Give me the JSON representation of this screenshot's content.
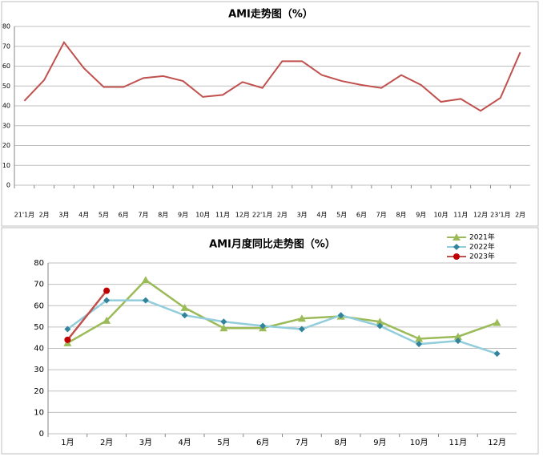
{
  "chart_data": [
    {
      "type": "line",
      "title": "AMI走势图（%）",
      "categories": [
        "21'1月",
        "2月",
        "3月",
        "4月",
        "5月",
        "6月",
        "7月",
        "8月",
        "9月",
        "10月",
        "11月",
        "12月",
        "22'1月",
        "2月",
        "3月",
        "4月",
        "5月",
        "6月",
        "7月",
        "8月",
        "9月",
        "10月",
        "11月",
        "12月",
        "23'1月",
        "2月"
      ],
      "values": [
        42.5,
        53,
        72,
        59,
        49.5,
        49.5,
        54,
        55,
        52.5,
        44.5,
        45.5,
        52,
        49,
        62.5,
        62.5,
        55.5,
        52.5,
        50.5,
        49,
        55.5,
        50.5,
        42,
        43.5,
        37.5,
        44,
        67
      ],
      "color": "#c0504d",
      "ylim": [
        0,
        80
      ],
      "yticks": [
        0,
        10,
        20,
        30,
        40,
        50,
        60,
        70,
        80
      ],
      "grid": true
    },
    {
      "type": "line",
      "title": "AMI月度同比走势图（%）",
      "categories": [
        "1月",
        "2月",
        "3月",
        "4月",
        "5月",
        "6月",
        "7月",
        "8月",
        "9月",
        "10月",
        "11月",
        "12月"
      ],
      "series": [
        {
          "name": "2021年",
          "color": "#9bbb59",
          "marker_color": "#9bbb59",
          "marker": "triangle",
          "values": [
            42.5,
            53,
            72,
            59,
            49.5,
            49.5,
            54,
            55,
            52.5,
            44.5,
            45.5,
            52
          ]
        },
        {
          "name": "2022年",
          "color": "#92cddc",
          "marker_color": "#31849b",
          "marker": "diamond",
          "values": [
            49,
            62.5,
            62.5,
            55.5,
            52.5,
            50.5,
            49,
            55.5,
            50.5,
            42,
            43.5,
            37.5
          ]
        },
        {
          "name": "2023年",
          "color": "#c0504d",
          "marker_color": "#c00000",
          "marker": "circle",
          "values": [
            44,
            67,
            null,
            null,
            null,
            null,
            null,
            null,
            null,
            null,
            null,
            null
          ]
        }
      ],
      "ylim": [
        0,
        80
      ],
      "yticks": [
        0,
        10,
        20,
        30,
        40,
        50,
        60,
        70,
        80
      ],
      "grid": true,
      "legend": "top-right"
    }
  ]
}
